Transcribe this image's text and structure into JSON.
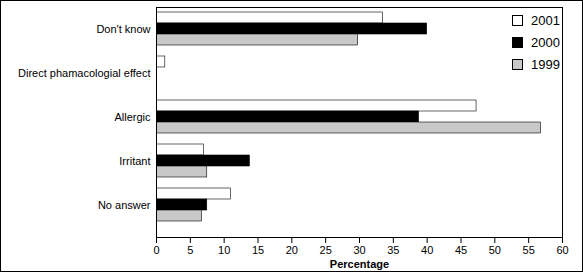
{
  "chart_data": {
    "type": "bar",
    "orientation": "horizontal",
    "categories": [
      "Don't know",
      "Direct phamacologial effect",
      "Allergic",
      "Irritant",
      "No answer"
    ],
    "series": [
      {
        "name": "2001",
        "color": "#ffffff",
        "values": [
          33.5,
          1.3,
          47.3,
          7,
          11
        ]
      },
      {
        "name": "2000",
        "color": "#000000",
        "values": [
          40,
          0,
          38.8,
          13.8,
          7.5
        ]
      },
      {
        "name": "1999",
        "color": "#c8c8c8",
        "values": [
          29.8,
          0,
          56.8,
          7.5,
          6.7
        ]
      }
    ],
    "xlabel": "Percentage",
    "xlim": [
      0,
      60
    ],
    "xticks": [
      0,
      5,
      10,
      15,
      20,
      25,
      30,
      35,
      40,
      45,
      50,
      55,
      60
    ],
    "grid": false,
    "legend": "upper right"
  }
}
